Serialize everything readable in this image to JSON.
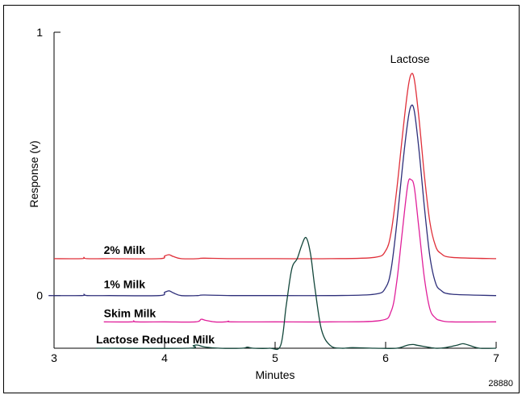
{
  "chart_data": {
    "type": "line",
    "title": "",
    "xlabel": "Minutes",
    "ylabel": "Response (v)",
    "xlim": [
      3,
      7
    ],
    "ylim": [
      -0.2,
      1.0
    ],
    "x_ticks": [
      "3",
      "4",
      "5",
      "6",
      "7"
    ],
    "y_ticks": [
      "0",
      "1"
    ],
    "grid": false,
    "legend": "inline labels",
    "peak_annotation": "Lactose",
    "figure_id": "28880",
    "series": [
      {
        "name": "2% Milk",
        "color": "#e0303a",
        "x": [
          3.0,
          3.25,
          3.27,
          3.3,
          3.5,
          3.95,
          4.0,
          4.04,
          4.08,
          4.15,
          4.3,
          4.35,
          4.6,
          5.0,
          5.5,
          5.9,
          6.0,
          6.05,
          6.1,
          6.15,
          6.2,
          6.23,
          6.26,
          6.3,
          6.35,
          6.4,
          6.45,
          6.5,
          6.6,
          7.0
        ],
        "y": [
          0.14,
          0.14,
          0.145,
          0.14,
          0.14,
          0.14,
          0.15,
          0.155,
          0.148,
          0.14,
          0.14,
          0.142,
          0.14,
          0.14,
          0.14,
          0.145,
          0.17,
          0.24,
          0.4,
          0.6,
          0.78,
          0.84,
          0.82,
          0.68,
          0.46,
          0.28,
          0.19,
          0.16,
          0.145,
          0.14
        ]
      },
      {
        "name": "1% Milk",
        "color": "#2e2f7a",
        "x": [
          2.95,
          3.25,
          3.27,
          3.3,
          3.5,
          3.95,
          4.0,
          4.04,
          4.08,
          4.15,
          4.3,
          4.35,
          4.6,
          5.0,
          5.5,
          5.9,
          6.0,
          6.05,
          6.1,
          6.15,
          6.2,
          6.23,
          6.26,
          6.3,
          6.35,
          6.4,
          6.45,
          6.5,
          6.6,
          7.0
        ],
        "y": [
          0.0,
          0.0,
          0.005,
          0.0,
          0.0,
          0.0,
          0.012,
          0.018,
          0.01,
          0.0,
          0.0,
          0.002,
          0.0,
          0.0,
          0.0,
          0.005,
          0.03,
          0.1,
          0.27,
          0.48,
          0.66,
          0.72,
          0.7,
          0.56,
          0.34,
          0.15,
          0.05,
          0.02,
          0.005,
          0.0
        ]
      },
      {
        "name": "Skim Milk",
        "color": "#e0209a",
        "x": [
          3.45,
          3.7,
          3.72,
          3.75,
          4.0,
          4.28,
          4.33,
          4.37,
          4.45,
          4.55,
          4.58,
          4.6,
          5.0,
          5.5,
          5.95,
          6.05,
          6.1,
          6.15,
          6.2,
          6.23,
          6.26,
          6.3,
          6.35,
          6.4,
          6.45,
          6.5,
          6.6,
          7.0
        ],
        "y": [
          -0.1,
          -0.1,
          -0.096,
          -0.1,
          -0.1,
          -0.1,
          -0.09,
          -0.094,
          -0.1,
          -0.1,
          -0.097,
          -0.1,
          -0.1,
          -0.1,
          -0.095,
          -0.06,
          0.05,
          0.24,
          0.42,
          0.44,
          0.41,
          0.26,
          0.07,
          -0.05,
          -0.085,
          -0.095,
          -0.1,
          -0.1
        ]
      },
      {
        "name": "Lactose Reduced Milk",
        "color": "#12463a",
        "x": [
          3.38,
          4.2,
          4.26,
          4.3,
          4.36,
          4.5,
          4.7,
          4.75,
          4.8,
          4.95,
          5.05,
          5.1,
          5.15,
          5.2,
          5.24,
          5.28,
          5.32,
          5.36,
          5.42,
          5.5,
          5.6,
          5.7,
          5.9,
          6.1,
          6.2,
          6.25,
          6.3,
          6.45,
          6.55,
          6.65,
          6.7,
          6.75,
          6.85,
          7.0
        ],
        "y": [
          -0.2,
          -0.2,
          -0.19,
          -0.188,
          -0.195,
          -0.2,
          -0.2,
          -0.196,
          -0.2,
          -0.2,
          -0.19,
          -0.04,
          0.1,
          0.14,
          0.19,
          0.22,
          0.16,
          0.03,
          -0.13,
          -0.19,
          -0.2,
          -0.198,
          -0.2,
          -0.2,
          -0.188,
          -0.186,
          -0.19,
          -0.2,
          -0.197,
          -0.188,
          -0.183,
          -0.188,
          -0.2,
          -0.2
        ]
      }
    ]
  }
}
